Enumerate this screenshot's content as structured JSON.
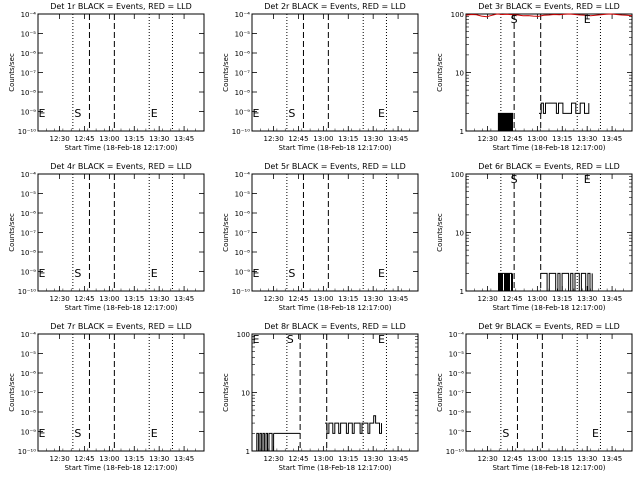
{
  "colors": {
    "events": "#000000",
    "lld": "#cc0000",
    "background": "#ffffff"
  },
  "x_ticks": [
    "12:30",
    "12:45",
    "13:00",
    "13:15",
    "13:30",
    "13:45"
  ],
  "xlabel": "Start Time (18-Feb-18 12:17:00)",
  "ylabel": "Counts/sec",
  "markers": {
    "start": "S",
    "end": "E"
  },
  "chart_data": [
    {
      "type": "line",
      "title": "Det 1r BLACK = Events, RED = LLD",
      "scale": "log",
      "ylim": [
        1e-10,
        0.0001
      ],
      "y_ticks": [
        "10⁻⁴",
        "10⁻⁵",
        "10⁻⁶",
        "10⁻⁷",
        "10⁻⁸",
        "10⁻⁹",
        "10⁻¹⁰"
      ],
      "x_range": [
        "12:17",
        "13:57"
      ],
      "dotted_x": [
        "12:17",
        "12:38",
        "13:24",
        "13:38"
      ],
      "dashed_x": [
        "12:48",
        "13:03"
      ],
      "marker_positions": {
        "start": "12:41",
        "end": "13:27",
        "left_e": "12:17"
      },
      "series": []
    },
    {
      "type": "line",
      "title": "Det 2r BLACK = Events, RED = LLD",
      "scale": "log",
      "ylim": [
        1e-10,
        0.0001
      ],
      "y_ticks": [
        "10⁻⁴",
        "10⁻⁵",
        "10⁻⁶",
        "10⁻⁷",
        "10⁻⁸",
        "10⁻⁹",
        "10⁻¹⁰"
      ],
      "x_range": [
        "12:17",
        "13:57"
      ],
      "dotted_x": [
        "12:17",
        "12:38",
        "13:24",
        "13:38"
      ],
      "dashed_x": [
        "12:48",
        "13:03"
      ],
      "marker_positions": {
        "start": "12:41",
        "end": "13:35",
        "left_e": "12:17"
      },
      "series": []
    },
    {
      "type": "line",
      "title": "Det 3r BLACK = Events, RED = LLD",
      "scale": "log",
      "ylim": [
        1,
        100
      ],
      "y_ticks": [
        "100",
        "10",
        "1"
      ],
      "x_range": [
        "12:17",
        "13:57"
      ],
      "dotted_x": [
        "12:38",
        "13:24",
        "13:38"
      ],
      "dashed_x": [
        "12:46",
        "13:02"
      ],
      "marker_positions": {
        "start": "12:46",
        "end": "13:30",
        "left_e": null
      },
      "series": [
        {
          "name": "Events",
          "color_key": "events",
          "segments": [
            {
              "x_start": "12:36",
              "x_end": "12:45",
              "values": [
                1,
                2,
                1,
                2,
                1,
                2,
                1,
                2,
                1,
                2,
                1,
                2,
                1,
                2,
                1,
                2,
                1,
                2,
                1
              ]
            },
            {
              "x_start": "13:01",
              "x_end": "13:31",
              "values": [
                2,
                3,
                2,
                3,
                3,
                3,
                3,
                3,
                2,
                3,
                3,
                2,
                2,
                2,
                2,
                3,
                3,
                2,
                2,
                3,
                3,
                2,
                2,
                3
              ]
            }
          ]
        },
        {
          "name": "LLD",
          "color_key": "lld",
          "segments": [
            {
              "x_start": "12:17",
              "x_end": "13:57",
              "values": [
                95,
                98,
                97,
                92,
                90,
                95,
                100,
                98,
                99,
                97,
                96,
                93,
                94,
                92,
                91,
                95,
                96,
                98,
                97,
                99,
                100,
                98,
                96,
                95,
                93,
                95,
                97,
                99,
                100,
                98,
                96,
                95,
                93
              ]
            }
          ]
        }
      ]
    },
    {
      "type": "line",
      "title": "Det 4r BLACK = Events, RED = LLD",
      "scale": "log",
      "ylim": [
        1e-10,
        0.0001
      ],
      "y_ticks": [
        "10⁻⁴",
        "10⁻⁵",
        "10⁻⁶",
        "10⁻⁷",
        "10⁻⁸",
        "10⁻⁹",
        "10⁻¹⁰"
      ],
      "x_range": [
        "12:17",
        "13:57"
      ],
      "dotted_x": [
        "12:17",
        "12:38",
        "13:24",
        "13:38"
      ],
      "dashed_x": [
        "12:48",
        "13:03"
      ],
      "marker_positions": {
        "start": "12:41",
        "end": "13:27",
        "left_e": "12:17"
      },
      "series": []
    },
    {
      "type": "line",
      "title": "Det 5r BLACK = Events, RED = LLD",
      "scale": "log",
      "ylim": [
        1e-10,
        0.0001
      ],
      "y_ticks": [
        "10⁻⁴",
        "10⁻⁵",
        "10⁻⁶",
        "10⁻⁷",
        "10⁻⁸",
        "10⁻⁹",
        "10⁻¹⁰"
      ],
      "x_range": [
        "12:17",
        "13:57"
      ],
      "dotted_x": [
        "12:17",
        "12:38",
        "13:24",
        "13:38"
      ],
      "dashed_x": [
        "12:48",
        "13:03"
      ],
      "marker_positions": {
        "start": "12:41",
        "end": "13:35",
        "left_e": "12:17"
      },
      "series": []
    },
    {
      "type": "line",
      "title": "Det 6r BLACK = Events, RED = LLD",
      "scale": "log",
      "ylim": [
        1,
        100
      ],
      "y_ticks": [
        "100",
        "10",
        "1"
      ],
      "x_range": [
        "12:17",
        "13:57"
      ],
      "dotted_x": [
        "12:38",
        "13:24",
        "13:38"
      ],
      "dashed_x": [
        "12:46",
        "13:02"
      ],
      "marker_positions": {
        "start": "12:46",
        "end": "13:30",
        "left_e": null
      },
      "series": [
        {
          "name": "Events",
          "color_key": "events",
          "segments": [
            {
              "x_start": "12:36",
              "x_end": "12:45",
              "values": [
                1,
                2,
                1,
                2,
                1,
                2,
                2,
                1,
                2,
                1,
                2,
                1,
                2,
                2,
                1,
                2
              ]
            },
            {
              "x_start": "13:02",
              "x_end": "13:33",
              "values": [
                2,
                2,
                2,
                1,
                2,
                2,
                2,
                1,
                2,
                1,
                2,
                2,
                2,
                1,
                2,
                1,
                2,
                2,
                1,
                2,
                2,
                1,
                2,
                1,
                2
              ]
            }
          ]
        }
      ]
    },
    {
      "type": "line",
      "title": "Det 7r BLACK = Events, RED = LLD",
      "scale": "log",
      "ylim": [
        1e-10,
        0.0001
      ],
      "y_ticks": [
        "10⁻⁴",
        "10⁻⁵",
        "10⁻⁶",
        "10⁻⁷",
        "10⁻⁸",
        "10⁻⁹",
        "10⁻¹⁰"
      ],
      "x_range": [
        "12:17",
        "13:57"
      ],
      "dotted_x": [
        "12:17",
        "12:38",
        "13:24",
        "13:38"
      ],
      "dashed_x": [
        "12:48",
        "13:03"
      ],
      "marker_positions": {
        "start": "12:41",
        "end": "13:27",
        "left_e": "12:17"
      },
      "series": []
    },
    {
      "type": "line",
      "title": "Det 8r BLACK = Events, RED = LLD",
      "scale": "log",
      "ylim": [
        1,
        100
      ],
      "y_ticks": [
        "100",
        "10",
        "1"
      ],
      "x_range": [
        "12:17",
        "13:57"
      ],
      "dotted_x": [
        "12:38",
        "13:24",
        "13:38"
      ],
      "dashed_x": [
        "12:46",
        "13:02"
      ],
      "marker_positions": {
        "start": "12:40",
        "end": "13:35",
        "left_e": "12:17"
      },
      "series": [
        {
          "name": "Events",
          "color_key": "events",
          "segments": [
            {
              "x_start": "12:19",
              "x_end": "12:30",
              "values": [
                1,
                2,
                1,
                2,
                1,
                2,
                1,
                2,
                1,
                2,
                2,
                1,
                2
              ]
            },
            {
              "x_start": "12:30",
              "x_end": "12:46",
              "values": [
                2,
                2,
                2,
                2,
                2,
                2,
                2,
                2,
                2
              ]
            },
            {
              "x_start": "13:01",
              "x_end": "13:35",
              "values": [
                3,
                2,
                3,
                3,
                2,
                3,
                3,
                2,
                3,
                3,
                3,
                2,
                3,
                3,
                2,
                3,
                3,
                3,
                2,
                3,
                3,
                3,
                2,
                3,
                3,
                4,
                3,
                3,
                2,
                3
              ]
            }
          ]
        }
      ]
    },
    {
      "type": "line",
      "title": "Det 9r BLACK = Events, RED = LLD",
      "scale": "log",
      "ylim": [
        1e-10,
        0.0001
      ],
      "y_ticks": [
        "10⁻⁴",
        "10⁻⁵",
        "10⁻⁶",
        "10⁻⁷",
        "10⁻⁸",
        "10⁻⁹",
        "10⁻¹⁰"
      ],
      "x_range": [
        "12:17",
        "13:57"
      ],
      "dotted_x": [
        "12:17",
        "12:38",
        "13:24",
        "13:38"
      ],
      "dashed_x": [
        "12:48",
        "13:03"
      ],
      "marker_positions": {
        "start": "12:41",
        "end": "13:35",
        "left_e": null
      },
      "series": []
    }
  ]
}
